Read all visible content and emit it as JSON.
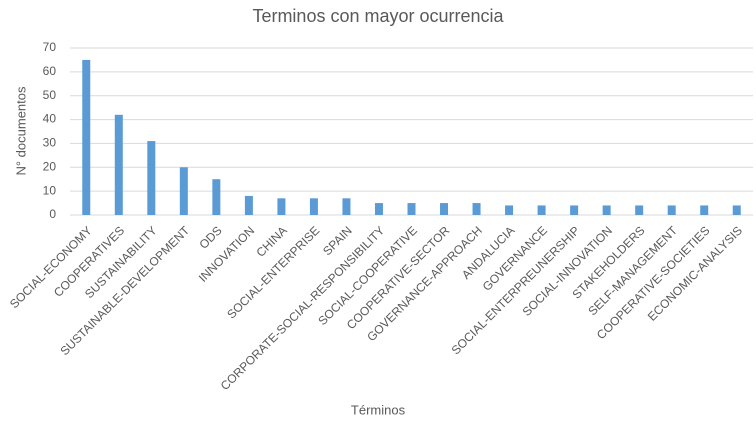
{
  "chart_data": {
    "type": "bar",
    "title": "Terminos con mayor ocurrencia",
    "x_label": "Términos",
    "y_label": "N° documentos",
    "categories": [
      "SOCIAL-ECONOMY",
      "COOPERATIVES",
      "SUSTAINABILITY",
      "SUSTAINABLE-DEVELOPMENT",
      "ODS",
      "INNOVATION",
      "CHINA",
      "SOCIAL-ENTERPRISE",
      "SPAIN",
      "CORPORATE-SOCIAL-RESPONSIBILITY",
      "SOCIAL-COOPERATIVE",
      "COOPERATIVE-SECTOR",
      "GOVERNANCE-APPROACH",
      "ANDALUCIA",
      "GOVERNANCE",
      "SOCIAL-ENTERPREUNERSHIP",
      "SOCIAL-INNOVATION",
      "STAKEHOLDERS",
      "SELF-MANAGEMENT",
      "COOPERATIVE-SOCIETIES",
      "ECONOMIC-ANALYSIS"
    ],
    "values": [
      65,
      42,
      31,
      20,
      15,
      8,
      7,
      7,
      7,
      5,
      5,
      5,
      5,
      4,
      4,
      4,
      4,
      4,
      4,
      4,
      4
    ],
    "color": "#5b9bd5",
    "ylim": [
      0,
      70
    ],
    "yticks": [
      0,
      10,
      20,
      30,
      40,
      50,
      60,
      70
    ],
    "grid": true
  }
}
